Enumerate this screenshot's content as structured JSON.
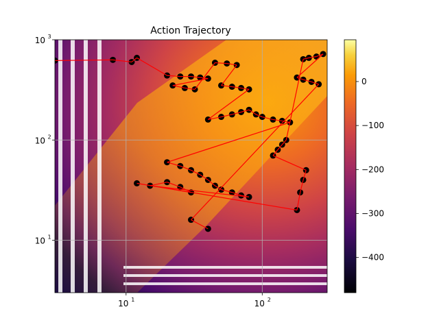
{
  "chart_data": {
    "type": "scatter",
    "title": "Action Trajectory",
    "xlabel": "",
    "ylabel": "",
    "xscale": "log",
    "yscale": "log",
    "xlim": [
      3,
      300
    ],
    "ylim": [
      3,
      1000
    ],
    "grid": true,
    "x_ticks": [
      {
        "value": 10,
        "base": "10",
        "exp": "1"
      },
      {
        "value": 100,
        "base": "10",
        "exp": "2"
      }
    ],
    "y_ticks": [
      {
        "value": 10,
        "base": "10",
        "exp": "1"
      },
      {
        "value": 100,
        "base": "10",
        "exp": "2"
      },
      {
        "value": 1000,
        "base": "10",
        "exp": "3"
      }
    ],
    "background_heatmap": {
      "colormap": "inferno",
      "description_values": "value field, low near bottom-left, high near upper-right band",
      "vmin": -480,
      "vmax": 95
    },
    "colorbar": {
      "colormap": "inferno",
      "range": [
        -480,
        95
      ],
      "ticks": [
        0,
        -100,
        -200,
        -300,
        -400
      ],
      "tick_labels": [
        "0",
        "−100",
        "−200",
        "−300",
        "−400"
      ]
    },
    "colors": {
      "trajectory": "#ff0000",
      "markers": "#000000",
      "grid": "#b0b0b0"
    },
    "series": [
      {
        "points": [
          [
            3,
            620
          ],
          [
            8,
            630
          ],
          [
            11,
            600
          ],
          [
            12,
            660
          ],
          [
            20,
            440
          ],
          [
            25,
            430
          ],
          [
            30,
            430
          ],
          [
            35,
            420
          ],
          [
            40,
            410
          ],
          [
            22,
            350
          ],
          [
            27,
            330
          ],
          [
            32,
            320
          ],
          [
            45,
            590
          ],
          [
            55,
            580
          ],
          [
            65,
            560
          ],
          [
            50,
            350
          ],
          [
            60,
            340
          ],
          [
            70,
            330
          ],
          [
            80,
            320
          ],
          [
            40,
            160
          ],
          [
            50,
            170
          ],
          [
            60,
            180
          ],
          [
            70,
            190
          ],
          [
            80,
            200
          ],
          [
            90,
            180
          ],
          [
            100,
            170
          ],
          [
            120,
            160
          ],
          [
            140,
            155
          ],
          [
            160,
            150
          ],
          [
            20,
            60
          ],
          [
            25,
            55
          ],
          [
            30,
            50
          ],
          [
            35,
            45
          ],
          [
            40,
            40
          ],
          [
            45,
            35
          ],
          [
            50,
            32
          ],
          [
            60,
            30
          ],
          [
            70,
            28
          ],
          [
            80,
            27
          ],
          [
            15,
            35
          ],
          [
            20,
            38
          ],
          [
            25,
            34
          ],
          [
            30,
            30
          ],
          [
            12,
            37
          ],
          [
            180,
            20
          ],
          [
            190,
            30
          ],
          [
            200,
            40
          ],
          [
            210,
            50
          ],
          [
            120,
            70
          ],
          [
            130,
            80
          ],
          [
            140,
            90
          ],
          [
            150,
            100
          ],
          [
            200,
            640
          ],
          [
            220,
            660
          ],
          [
            250,
            680
          ],
          [
            280,
            720
          ],
          [
            180,
            420
          ],
          [
            200,
            400
          ],
          [
            230,
            380
          ],
          [
            260,
            360
          ],
          [
            30,
            16
          ],
          [
            40,
            13
          ]
        ]
      }
    ]
  }
}
